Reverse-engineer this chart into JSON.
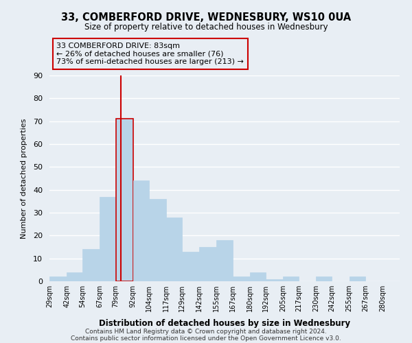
{
  "title": "33, COMBERFORD DRIVE, WEDNESBURY, WS10 0UA",
  "subtitle": "Size of property relative to detached houses in Wednesbury",
  "xlabel": "Distribution of detached houses by size in Wednesbury",
  "ylabel": "Number of detached properties",
  "bar_color": "#b8d4e8",
  "highlight_bar_edge_color": "#cc0000",
  "bin_labels": [
    "29sqm",
    "42sqm",
    "54sqm",
    "67sqm",
    "79sqm",
    "92sqm",
    "104sqm",
    "117sqm",
    "129sqm",
    "142sqm",
    "155sqm",
    "167sqm",
    "180sqm",
    "192sqm",
    "205sqm",
    "217sqm",
    "230sqm",
    "242sqm",
    "255sqm",
    "267sqm",
    "280sqm"
  ],
  "bin_edges": [
    29,
    42,
    54,
    67,
    79,
    92,
    104,
    117,
    129,
    142,
    155,
    167,
    180,
    192,
    205,
    217,
    230,
    242,
    255,
    267,
    280
  ],
  "counts": [
    2,
    4,
    14,
    37,
    71,
    44,
    36,
    28,
    13,
    15,
    18,
    2,
    4,
    1,
    2,
    0,
    2,
    0,
    2,
    0
  ],
  "highlight_bin_index": 4,
  "red_line_x": 83,
  "annotation_title": "33 COMBERFORD DRIVE: 83sqm",
  "annotation_line1": "← 26% of detached houses are smaller (76)",
  "annotation_line2": "73% of semi-detached houses are larger (213) →",
  "ylim": [
    0,
    90
  ],
  "yticks": [
    0,
    10,
    20,
    30,
    40,
    50,
    60,
    70,
    80,
    90
  ],
  "background_color": "#e8eef4",
  "plot_bg_color": "#e8eef4",
  "grid_color": "#ffffff",
  "footer1": "Contains HM Land Registry data © Crown copyright and database right 2024.",
  "footer2": "Contains public sector information licensed under the Open Government Licence v3.0."
}
